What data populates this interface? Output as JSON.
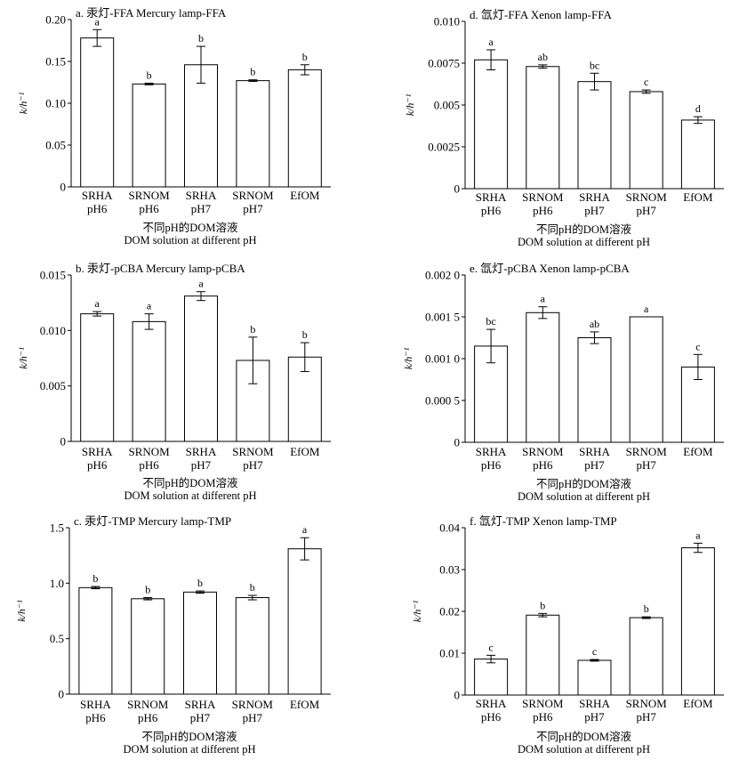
{
  "chart_data": [
    {
      "id": "a",
      "type": "bar",
      "title": "a. 汞灯-FFA Mercury lamp-FFA",
      "ylabel": "k/h⁻¹",
      "xlabel_cn": "不同pH的DOM溶液",
      "xlabel_en": "DOM solution at different pH",
      "ylim": [
        0,
        0.2
      ],
      "yticks": [
        0,
        0.05,
        0.1,
        0.15,
        0.2
      ],
      "ytick_labels": [
        "0",
        "0.05",
        "0.10",
        "0.15",
        "0.20"
      ],
      "categories": [
        [
          "SRHA",
          "pH6"
        ],
        [
          "SRNOM",
          "pH6"
        ],
        [
          "SRHA",
          "pH7"
        ],
        [
          "SRNOM",
          "pH7"
        ],
        [
          "EfOM",
          ""
        ]
      ],
      "values": [
        0.178,
        0.123,
        0.146,
        0.127,
        0.14
      ],
      "errors": [
        0.01,
        0.001,
        0.022,
        0.001,
        0.006
      ],
      "significance": [
        "a",
        "b",
        "b",
        "b",
        "b"
      ]
    },
    {
      "id": "b",
      "type": "bar",
      "title": "b. 汞灯-pCBA Mercury lamp-pCBA",
      "ylabel": "k/h⁻¹",
      "xlabel_cn": "不同pH的DOM溶液",
      "xlabel_en": "DOM solution at different pH",
      "ylim": [
        0,
        0.015
      ],
      "yticks": [
        0,
        0.005,
        0.01,
        0.015
      ],
      "ytick_labels": [
        "0",
        "0.005",
        "0.010",
        "0.015"
      ],
      "categories": [
        [
          "SRHA",
          "pH6"
        ],
        [
          "SRNOM",
          "pH6"
        ],
        [
          "SRHA",
          "pH7"
        ],
        [
          "SRNOM",
          "pH7"
        ],
        [
          "EfOM",
          ""
        ]
      ],
      "values": [
        0.0115,
        0.0108,
        0.0131,
        0.0073,
        0.0076
      ],
      "errors": [
        0.0002,
        0.0007,
        0.0004,
        0.0021,
        0.0013
      ],
      "significance": [
        "a",
        "a",
        "a",
        "b",
        "b"
      ]
    },
    {
      "id": "c",
      "type": "bar",
      "title": "c. 汞灯-TMP Mercury lamp-TMP",
      "ylabel": "k/h⁻¹",
      "xlabel_cn": "不同pH的DOM溶液",
      "xlabel_en": "DOM solution at different pH",
      "ylim": [
        0,
        1.5
      ],
      "yticks": [
        0,
        0.5,
        1.0,
        1.5
      ],
      "ytick_labels": [
        "0",
        "0.5",
        "1.0",
        "1.5"
      ],
      "categories": [
        [
          "SRHA",
          "pH6"
        ],
        [
          "SRNOM",
          "pH6"
        ],
        [
          "SRHA",
          "pH7"
        ],
        [
          "SRNOM",
          "pH7"
        ],
        [
          "EfOM",
          ""
        ]
      ],
      "values": [
        0.96,
        0.86,
        0.92,
        0.87,
        1.31
      ],
      "errors": [
        0.01,
        0.01,
        0.01,
        0.02,
        0.1
      ],
      "significance": [
        "b",
        "b",
        "b",
        "b",
        "a"
      ]
    },
    {
      "id": "d",
      "type": "bar",
      "title": "d. 氙灯-FFA Xenon lamp-FFA",
      "ylabel": "k/h⁻¹",
      "xlabel_cn": "不同pH的DOM溶液",
      "xlabel_en": "DOM solution at different pH",
      "ylim": [
        0,
        0.01
      ],
      "yticks": [
        0,
        0.0025,
        0.005,
        0.0075,
        0.01
      ],
      "ytick_labels": [
        "0",
        "0.0025",
        "0.005",
        "0.0075",
        "0.010"
      ],
      "categories": [
        [
          "SRHA",
          "pH6"
        ],
        [
          "SRNOM",
          "pH6"
        ],
        [
          "SRHA",
          "pH7"
        ],
        [
          "SRNOM",
          "pH7"
        ],
        [
          "EfOM",
          ""
        ]
      ],
      "values": [
        0.0077,
        0.0073,
        0.0064,
        0.0058,
        0.0041
      ],
      "errors": [
        0.0006,
        0.0001,
        0.0005,
        0.0001,
        0.0002
      ],
      "significance": [
        "a",
        "ab",
        "bc",
        "c",
        "d"
      ]
    },
    {
      "id": "e",
      "type": "bar",
      "title": "e. 氙灯-pCBA Xenon lamp-pCBA",
      "ylabel": "k/h⁻¹",
      "xlabel_cn": "不同pH的DOM溶液",
      "xlabel_en": "DOM solution at different pH",
      "ylim": [
        0,
        0.002
      ],
      "yticks": [
        0,
        0.0005,
        0.001,
        0.0015,
        0.002
      ],
      "ytick_labels": [
        "0",
        "0.000 5",
        "0.001 0",
        "0.001 5",
        "0.002 0"
      ],
      "categories": [
        [
          "SRHA",
          "pH6"
        ],
        [
          "SRNOM",
          "pH6"
        ],
        [
          "SRHA",
          "pH7"
        ],
        [
          "SRNOM",
          "pH7"
        ],
        [
          "EfOM",
          ""
        ]
      ],
      "values": [
        0.00115,
        0.00155,
        0.00125,
        0.0015,
        0.0009
      ],
      "errors": [
        0.0002,
        7e-05,
        7e-05,
        0.0,
        0.00015
      ],
      "significance": [
        "bc",
        "a",
        "ab",
        "a",
        "c"
      ]
    },
    {
      "id": "f",
      "type": "bar",
      "title": "f. 氙灯-TMP Xenon lamp-TMP",
      "ylabel": "k/h⁻¹",
      "xlabel_cn": "不同pH的DOM溶液",
      "xlabel_en": "DOM solution at different pH",
      "ylim": [
        0,
        0.04
      ],
      "yticks": [
        0,
        0.01,
        0.02,
        0.03,
        0.04
      ],
      "ytick_labels": [
        "0",
        "0.01",
        "0.02",
        "0.03",
        "0.04"
      ],
      "categories": [
        [
          "SRHA",
          "pH6"
        ],
        [
          "SRNOM",
          "pH6"
        ],
        [
          "SRHA",
          "pH7"
        ],
        [
          "SRNOM",
          "pH7"
        ],
        [
          "EfOM",
          ""
        ]
      ],
      "values": [
        0.0086,
        0.0191,
        0.0083,
        0.0185,
        0.0352
      ],
      "errors": [
        0.0009,
        0.0004,
        0.0002,
        0.0002,
        0.0011
      ],
      "significance": [
        "c",
        "b",
        "c",
        "b",
        "a"
      ]
    }
  ]
}
